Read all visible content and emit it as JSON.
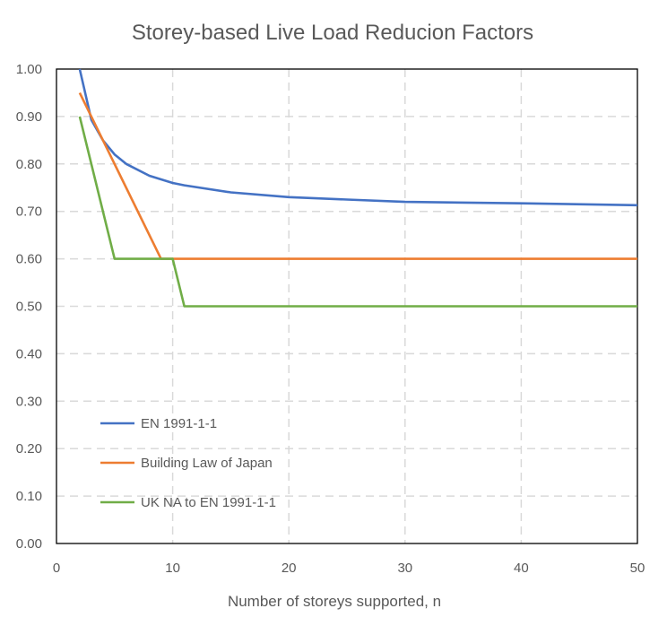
{
  "chart_data": {
    "type": "line",
    "title": "Storey-based Live Load Reducion Factors",
    "xlabel": "Number of storeys supported, n",
    "ylabel": "",
    "xlim": [
      0,
      50
    ],
    "ylim": [
      0,
      1
    ],
    "x_ticks": [
      "0",
      "10",
      "20",
      "30",
      "40",
      "50"
    ],
    "y_ticks": [
      "0.00",
      "0.10",
      "0.20",
      "0.30",
      "0.40",
      "0.50",
      "0.60",
      "0.70",
      "0.80",
      "0.90",
      "1.00"
    ],
    "grid": true,
    "legend_position": "lower-left",
    "series": [
      {
        "name": "EN 1991-1-1",
        "color": "#4472c4",
        "x": [
          2,
          3,
          4,
          5,
          6,
          8,
          10,
          11,
          15,
          20,
          25,
          30,
          40,
          50
        ],
        "y": [
          1.0,
          0.893,
          0.85,
          0.82,
          0.8,
          0.775,
          0.76,
          0.755,
          0.74,
          0.73,
          0.725,
          0.72,
          0.717,
          0.713
        ]
      },
      {
        "name": "Building Law of Japan",
        "color": "#ed7d31",
        "x": [
          2,
          9,
          10,
          50
        ],
        "y": [
          0.95,
          0.6,
          0.6,
          0.6
        ]
      },
      {
        "name": "UK NA to EN 1991-1-1",
        "color": "#70ad47",
        "x": [
          2,
          5,
          10,
          11,
          50
        ],
        "y": [
          0.9,
          0.6,
          0.6,
          0.5,
          0.5
        ]
      }
    ]
  }
}
